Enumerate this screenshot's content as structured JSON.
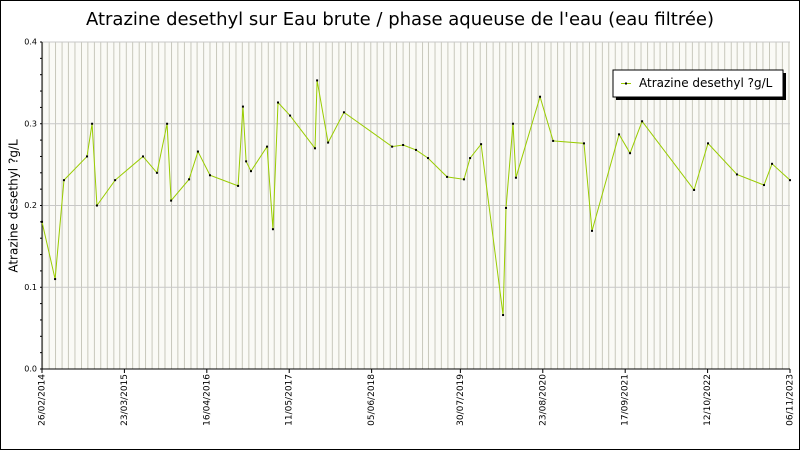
{
  "chart_data": {
    "type": "line",
    "title": "Atrazine desethyl sur Eau brute / phase aqueuse de l'eau (eau filtrée)",
    "ylabel": "Atrazine desethyl ?g/L",
    "x": [
      "26/02/2014",
      "29/04/2014",
      "10/06/2014",
      "27/09/2014",
      "21/10/2014",
      "13/11/2014",
      "07/02/2015",
      "19/06/2015",
      "24/08/2015",
      "11/10/2015",
      "30/10/2015",
      "23/01/2016",
      "05/03/2016",
      "01/05/2016",
      "11/09/2016",
      "04/10/2016",
      "19/10/2016",
      "11/11/2016",
      "26/01/2017",
      "23/02/2017",
      "19/03/2017",
      "15/05/2017",
      "10/09/2017",
      "20/09/2017",
      "11/11/2017",
      "25/01/2018",
      "10/09/2018",
      "01/11/2018",
      "01/01/2019",
      "27/02/2019",
      "28/05/2019",
      "16/08/2019",
      "14/09/2019",
      "05/11/2019",
      "17/02/2020",
      "02/03/2020",
      "04/04/2020",
      "18/04/2020",
      "10/08/2020",
      "11/10/2020",
      "06/03/2021",
      "13/04/2021",
      "19/08/2021",
      "10/10/2021",
      "06/12/2021",
      "09/08/2022",
      "14/10/2022",
      "28/02/2023",
      "06/07/2023",
      "13/08/2023",
      "06/11/2023"
    ],
    "series": [
      {
        "name": "Atrazine desethyl ?g/L",
        "color": "#99cc00",
        "values": [
          0.18,
          0.11,
          0.231,
          0.26,
          0.3,
          0.2,
          0.231,
          0.26,
          0.24,
          0.3,
          0.206,
          0.232,
          0.266,
          0.237,
          0.224,
          0.321,
          0.254,
          0.242,
          0.272,
          0.171,
          0.326,
          0.31,
          0.27,
          0.353,
          0.277,
          0.314,
          0.272,
          0.274,
          0.268,
          0.258,
          0.235,
          0.232,
          0.258,
          0.275,
          0.066,
          0.197,
          0.3,
          0.234,
          0.333,
          0.279,
          0.276,
          0.169,
          0.287,
          0.264,
          0.303,
          0.219,
          0.276,
          0.238,
          0.225,
          0.251,
          0.231
        ]
      }
    ],
    "xlim": [
      "26/02/2014",
      "06/11/2023"
    ],
    "xticks": [
      "26/02/2014",
      "23/03/2015",
      "16/04/2016",
      "11/05/2017",
      "05/06/2018",
      "30/07/2019",
      "23/08/2020",
      "17/09/2021",
      "12/10/2022",
      "06/11/2023"
    ],
    "ylim": [
      0,
      0.4
    ],
    "yticks": [
      {
        "value": 0,
        "label": "0.0"
      },
      0.1,
      0.2,
      0.3,
      0.4
    ],
    "grid": true,
    "legend": "upper right"
  }
}
